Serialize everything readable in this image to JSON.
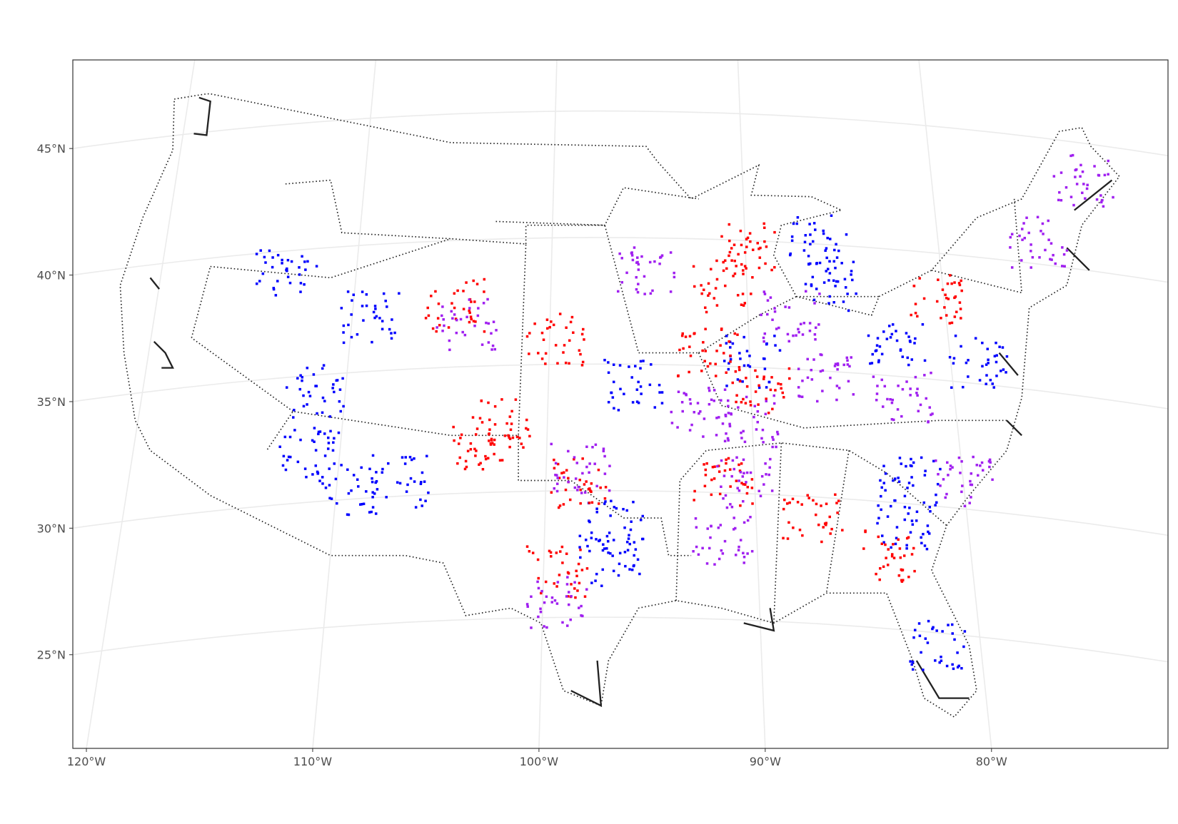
{
  "map": {
    "xlim": [
      -120.6,
      -72.2
    ],
    "ylim": [
      21.3,
      48.5
    ],
    "xticks": [
      {
        "value": -120,
        "label": "120°W"
      },
      {
        "value": -110,
        "label": "110°W"
      },
      {
        "value": -100,
        "label": "100°W"
      },
      {
        "value": -90,
        "label": "90°W"
      },
      {
        "value": -80,
        "label": "80°W"
      }
    ],
    "yticks": [
      {
        "value": 45,
        "label": "45°N"
      },
      {
        "value": 40,
        "label": "40°N"
      },
      {
        "value": 35,
        "label": "35°N"
      },
      {
        "value": 30,
        "label": "30°N"
      },
      {
        "value": 25,
        "label": "25°N"
      }
    ]
  }
}
